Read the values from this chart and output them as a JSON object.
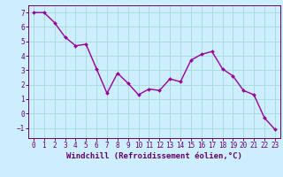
{
  "x": [
    0,
    1,
    2,
    3,
    4,
    5,
    6,
    7,
    8,
    9,
    10,
    11,
    12,
    13,
    14,
    15,
    16,
    17,
    18,
    19,
    20,
    21,
    22,
    23
  ],
  "y": [
    7.0,
    7.0,
    6.3,
    5.3,
    4.7,
    4.8,
    3.1,
    1.4,
    2.8,
    2.1,
    1.3,
    1.7,
    1.6,
    2.4,
    2.2,
    3.7,
    4.1,
    4.3,
    3.1,
    2.6,
    1.6,
    1.3,
    -0.3,
    -1.1
  ],
  "line_color": "#990099",
  "marker": "D",
  "marker_size": 2.0,
  "line_width": 1.0,
  "bg_color": "#cceeff",
  "grid_color": "#aadddd",
  "xlabel": "Windchill (Refroidissement éolien,°C)",
  "xlim": [
    -0.5,
    23.5
  ],
  "ylim": [
    -1.7,
    7.5
  ],
  "yticks": [
    -1,
    0,
    1,
    2,
    3,
    4,
    5,
    6,
    7
  ],
  "xticks": [
    0,
    1,
    2,
    3,
    4,
    5,
    6,
    7,
    8,
    9,
    10,
    11,
    12,
    13,
    14,
    15,
    16,
    17,
    18,
    19,
    20,
    21,
    22,
    23
  ],
  "tick_color": "#660066",
  "label_color": "#660066",
  "label_fontsize": 6.5,
  "tick_fontsize": 5.5,
  "spine_color": "#660066"
}
